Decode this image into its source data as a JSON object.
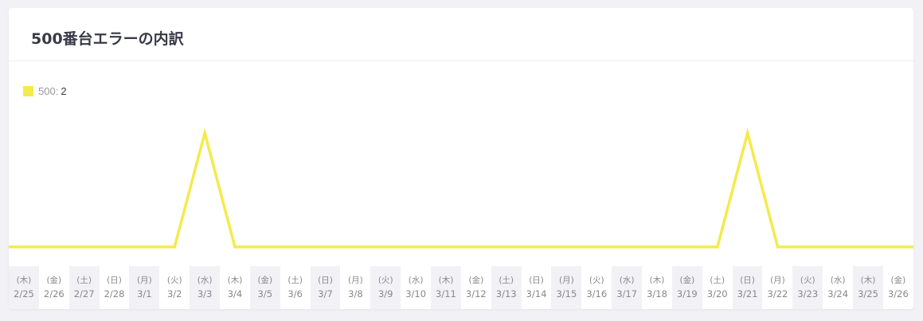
{
  "card": {
    "title": "500番台エラーの内訳"
  },
  "legend": {
    "name": "500:",
    "value": "2",
    "color": "#f5ea4c"
  },
  "chart_data": {
    "type": "line",
    "title": "500番台エラーの内訳",
    "categories": [
      "2/25",
      "2/26",
      "2/27",
      "2/28",
      "3/1",
      "3/2",
      "3/3",
      "3/4",
      "3/5",
      "3/6",
      "3/7",
      "3/8",
      "3/9",
      "3/10",
      "3/11",
      "3/12",
      "3/13",
      "3/14",
      "3/15",
      "3/16",
      "3/17",
      "3/18",
      "3/19",
      "3/20",
      "3/21",
      "3/22",
      "3/23",
      "3/24",
      "3/25",
      "3/26"
    ],
    "weekdays": [
      "(木)",
      "(金)",
      "(土)",
      "(日)",
      "(月)",
      "(火)",
      "(水)",
      "(木)",
      "(金)",
      "(土)",
      "(日)",
      "(月)",
      "(火)",
      "(水)",
      "(木)",
      "(金)",
      "(土)",
      "(日)",
      "(月)",
      "(火)",
      "(水)",
      "(木)",
      "(金)",
      "(土)",
      "(日)",
      "(月)",
      "(火)",
      "(水)",
      "(木)",
      "(金)"
    ],
    "series": [
      {
        "name": "500",
        "color": "#f5ea4c",
        "values": [
          0,
          0,
          0,
          0,
          0,
          0,
          1,
          0,
          0,
          0,
          0,
          0,
          0,
          0,
          0,
          0,
          0,
          0,
          0,
          0,
          0,
          0,
          0,
          0,
          1,
          0,
          0,
          0,
          0,
          0
        ]
      }
    ],
    "ylim": [
      0,
      1
    ],
    "grid": false,
    "legend_position": "top-left"
  }
}
